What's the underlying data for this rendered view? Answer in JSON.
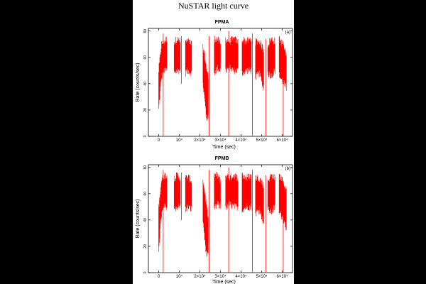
{
  "page_title": "NuSTAR light curve",
  "chart_data": [
    {
      "type": "line",
      "title": "FPMA",
      "panel_label": "(a)",
      "xlabel": "Time (sec)",
      "ylabel": "Rate (counts/sec)",
      "xlim": [
        -5000,
        65000
      ],
      "ylim": [
        0,
        82
      ],
      "xticks": [
        0,
        10000,
        20000,
        30000,
        40000,
        50000,
        60000
      ],
      "xtick_labels": [
        "0",
        "10⁴",
        "2×10⁴",
        "3×10⁴",
        "4×10⁴",
        "5×10⁴",
        "6×10⁴"
      ],
      "yticks": [
        0,
        20,
        40,
        60,
        80
      ],
      "ytick_labels": [
        "0",
        "20",
        "40",
        "60",
        "80"
      ],
      "color": "#ff0000",
      "segments": [
        {
          "x0": 0,
          "x1": 4000,
          "low": [
            20,
            45,
            50,
            50
          ],
          "high": [
            50,
            70,
            72,
            74
          ]
        },
        {
          "x0": 7500,
          "x1": 10500,
          "low": [
            48,
            50,
            50
          ],
          "high": [
            72,
            74,
            72
          ]
        },
        {
          "x0": 13000,
          "x1": 16000,
          "low": [
            48,
            50,
            48
          ],
          "high": [
            72,
            72,
            70
          ]
        },
        {
          "x0": 21500,
          "x1": 24000,
          "low": [
            40,
            28,
            15,
            12
          ],
          "high": [
            68,
            62,
            52,
            45
          ]
        },
        {
          "x0": 27000,
          "x1": 30000,
          "low": [
            48,
            52,
            50
          ],
          "high": [
            74,
            74,
            70
          ]
        },
        {
          "x0": 32500,
          "x1": 38500,
          "low": [
            50,
            52,
            50,
            50
          ],
          "high": [
            74,
            72,
            74,
            72
          ]
        },
        {
          "x0": 40500,
          "x1": 45000,
          "low": [
            48,
            50,
            50
          ],
          "high": [
            74,
            72,
            74
          ]
        },
        {
          "x0": 47000,
          "x1": 51000,
          "low": [
            45,
            48,
            36
          ],
          "high": [
            72,
            72,
            66
          ]
        },
        {
          "x0": 53000,
          "x1": 56500,
          "low": [
            48,
            46,
            50
          ],
          "high": [
            70,
            74,
            72
          ]
        },
        {
          "x0": 58500,
          "x1": 62000,
          "low": [
            46,
            42,
            36
          ],
          "high": [
            74,
            70,
            62
          ]
        }
      ],
      "spikes": [
        {
          "x": 2200,
          "y0": 0,
          "y1": 78
        },
        {
          "x": 11000,
          "y0": 40,
          "y1": 76
        },
        {
          "x": 24500,
          "y0": 0,
          "y1": 76
        },
        {
          "x": 34000,
          "y0": 0,
          "y1": 80
        },
        {
          "x": 45500,
          "y0": 0,
          "y1": 78
        },
        {
          "x": 52000,
          "y0": 0,
          "y1": 74
        },
        {
          "x": 60500,
          "y0": 0,
          "y1": 72
        }
      ]
    },
    {
      "type": "line",
      "title": "FPMB",
      "panel_label": "(b)",
      "xlabel": "Time (sec)",
      "ylabel": "Rate (counts/sec)",
      "xlim": [
        -5000,
        65000
      ],
      "ylim": [
        0,
        82
      ],
      "xticks": [
        0,
        10000,
        20000,
        30000,
        40000,
        50000,
        60000
      ],
      "xtick_labels": [
        "0",
        "10⁴",
        "2×10⁴",
        "3×10⁴",
        "4×10⁴",
        "5×10⁴",
        "6×10⁴"
      ],
      "yticks": [
        0,
        20,
        40,
        60,
        80
      ],
      "ytick_labels": [
        "0",
        "20",
        "40",
        "60",
        "80"
      ],
      "color": "#ff0000",
      "segments": [
        {
          "x0": 0,
          "x1": 4000,
          "low": [
            18,
            44,
            50,
            50
          ],
          "high": [
            50,
            70,
            74,
            74
          ]
        },
        {
          "x0": 7500,
          "x1": 10500,
          "low": [
            48,
            50,
            50
          ],
          "high": [
            72,
            74,
            72
          ]
        },
        {
          "x0": 13000,
          "x1": 16000,
          "low": [
            48,
            50,
            48
          ],
          "high": [
            72,
            72,
            70
          ]
        },
        {
          "x0": 21500,
          "x1": 24000,
          "low": [
            40,
            26,
            14,
            12
          ],
          "high": [
            70,
            62,
            50,
            44
          ]
        },
        {
          "x0": 27000,
          "x1": 30000,
          "low": [
            48,
            52,
            50
          ],
          "high": [
            74,
            74,
            70
          ]
        },
        {
          "x0": 32500,
          "x1": 38500,
          "low": [
            50,
            52,
            50,
            50
          ],
          "high": [
            74,
            72,
            74,
            72
          ]
        },
        {
          "x0": 40500,
          "x1": 45000,
          "low": [
            48,
            50,
            50
          ],
          "high": [
            74,
            72,
            74
          ]
        },
        {
          "x0": 47000,
          "x1": 51000,
          "low": [
            45,
            48,
            38
          ],
          "high": [
            72,
            72,
            66
          ]
        },
        {
          "x0": 53000,
          "x1": 56500,
          "low": [
            48,
            46,
            50
          ],
          "high": [
            70,
            74,
            72
          ]
        },
        {
          "x0": 58500,
          "x1": 62000,
          "low": [
            46,
            42,
            34
          ],
          "high": [
            74,
            70,
            62
          ]
        }
      ],
      "spikes": [
        {
          "x": 2200,
          "y0": 0,
          "y1": 78
        },
        {
          "x": 11000,
          "y0": 40,
          "y1": 76
        },
        {
          "x": 24500,
          "y0": 0,
          "y1": 78
        },
        {
          "x": 34000,
          "y0": 0,
          "y1": 80
        },
        {
          "x": 45500,
          "y0": 0,
          "y1": 78
        },
        {
          "x": 52000,
          "y0": 0,
          "y1": 74
        },
        {
          "x": 60500,
          "y0": 0,
          "y1": 70
        }
      ]
    }
  ]
}
